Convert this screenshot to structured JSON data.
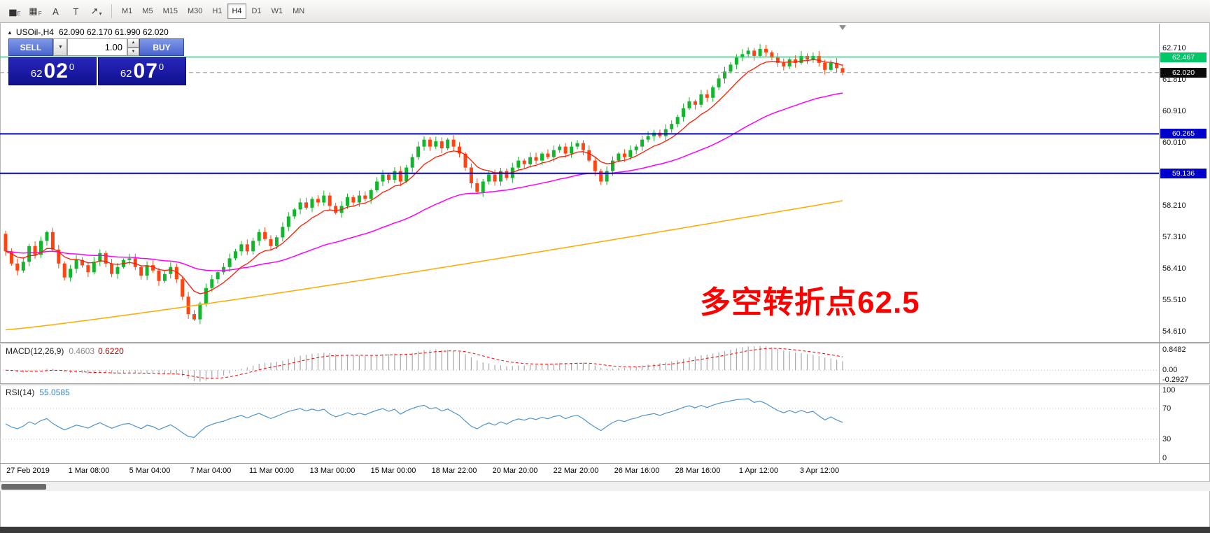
{
  "window": {
    "header": {
      "collapse_glyph": "▲",
      "symbol": "USOil-,H4",
      "ohlc": "62.090 62.170 61.990 62.020"
    }
  },
  "toolbar": {
    "icons": [
      {
        "name": "chart-expert-icon",
        "glyph": "▅",
        "sub": "E"
      },
      {
        "name": "grid-template-icon",
        "glyph": "▦",
        "sub": "F"
      },
      {
        "name": "font-a-icon",
        "glyph": "A",
        "sub": ""
      },
      {
        "name": "text-label-icon",
        "glyph": "T",
        "sub": ""
      },
      {
        "name": "draw-tools-dropdown-icon",
        "glyph": "↗",
        "sub": "▾"
      }
    ],
    "timeframes": [
      "M1",
      "M5",
      "M15",
      "M30",
      "H1",
      "H4",
      "D1",
      "W1",
      "MN"
    ],
    "active": "H4"
  },
  "trade_panel": {
    "sell_label": "SELL",
    "buy_label": "BUY",
    "volume": "1.00",
    "caret_glyph": "▼",
    "spin_up_glyph": "▲",
    "spin_down_glyph": "▼",
    "sell_price": {
      "prefix": "62",
      "big": "02",
      "sup": "0"
    },
    "buy_price": {
      "prefix": "62",
      "big": "07",
      "sup": "0"
    }
  },
  "annotation": {
    "text": "多空转折点62.5",
    "color": "#ff0000"
  },
  "chart_data": {
    "type": "candlestick",
    "symbol": "USOil-",
    "timeframe": "H4",
    "title": "USOil-,H4",
    "last_ohlc": {
      "open": 62.09,
      "high": 62.17,
      "low": 61.99,
      "close": 62.02
    },
    "y_range": [
      54.3,
      63.42
    ],
    "price_axis_labels": [
      "62.710",
      "61.810",
      "60.910",
      "60.010",
      "58.210",
      "57.310",
      "56.410",
      "55.510",
      "54.610"
    ],
    "time_labels": [
      "27 Feb 2019",
      "1 Mar 08:00",
      "5 Mar 04:00",
      "7 Mar 04:00",
      "11 Mar 00:00",
      "13 Mar 00:00",
      "15 Mar 00:00",
      "18 Mar 22:00",
      "20 Mar 20:00",
      "22 Mar 20:00",
      "26 Mar 16:00",
      "28 Mar 16:00",
      "1 Apr 12:00",
      "3 Apr 12:00"
    ],
    "first_open": 57.4,
    "closes": [
      56.9,
      56.55,
      56.35,
      56.6,
      57.05,
      56.8,
      57.2,
      57.45,
      56.95,
      56.55,
      56.15,
      56.4,
      56.65,
      56.5,
      56.3,
      56.6,
      56.85,
      56.55,
      56.25,
      56.45,
      56.65,
      56.7,
      56.45,
      56.2,
      56.5,
      56.35,
      56.05,
      56.25,
      56.45,
      56.1,
      55.6,
      55.1,
      54.95,
      55.4,
      55.85,
      56.1,
      56.3,
      56.45,
      56.7,
      56.9,
      57.1,
      56.9,
      57.2,
      57.45,
      57.25,
      57.05,
      57.3,
      57.6,
      57.9,
      58.1,
      58.3,
      58.15,
      58.4,
      58.3,
      58.5,
      58.2,
      58.0,
      58.2,
      58.45,
      58.3,
      58.5,
      58.4,
      58.65,
      58.9,
      59.1,
      58.95,
      59.2,
      58.9,
      59.3,
      59.6,
      59.9,
      60.1,
      59.9,
      60.05,
      59.85,
      60.1,
      59.9,
      59.7,
      59.3,
      58.85,
      58.6,
      58.9,
      59.1,
      58.9,
      59.2,
      59.0,
      59.3,
      59.5,
      59.4,
      59.6,
      59.5,
      59.7,
      59.6,
      59.8,
      59.9,
      59.7,
      59.9,
      60.0,
      59.8,
      59.5,
      59.2,
      58.9,
      59.2,
      59.5,
      59.7,
      59.6,
      59.8,
      59.9,
      60.1,
      60.2,
      60.3,
      60.2,
      60.4,
      60.55,
      60.75,
      61.0,
      61.2,
      61.1,
      61.4,
      61.3,
      61.6,
      61.85,
      62.05,
      62.25,
      62.45,
      62.55,
      62.65,
      62.5,
      62.7,
      62.6,
      62.45,
      62.3,
      62.2,
      62.4,
      62.3,
      62.5,
      62.4,
      62.5,
      62.3,
      62.1,
      62.3,
      62.15,
      62.02
    ],
    "candle_colors": {
      "up": "#12b52c",
      "down": "#ff4411"
    },
    "moving_averages": {
      "fast_period": 9,
      "fast_color": "#ff1a00",
      "mid_period": 45,
      "mid_color": "#ff00ff",
      "slow_color": "#ffaa00",
      "slow_start": 54.65,
      "slow_end": 58.35
    },
    "levels": [
      {
        "text": "62.467",
        "price": 62.467,
        "bg": "#00c868",
        "line": "#00e07a",
        "line_width": 1.5,
        "dashed": false,
        "role": "resistance-line"
      },
      {
        "text": "62.020",
        "price": 62.02,
        "bg": "#0a0a0a",
        "line": "#9a9a9a",
        "line_width": 1,
        "dashed": true,
        "role": "current-price"
      },
      {
        "text": "60.265",
        "price": 60.265,
        "bg": "#0000cd",
        "line": "#0000cd",
        "line_width": 2,
        "dashed": false,
        "role": "support-line-upper"
      },
      {
        "text": "59.136",
        "price": 59.136,
        "bg": "#0000cd",
        "line": "#0000cd",
        "line_width": 2,
        "dashed": false,
        "role": "support-line-lower"
      }
    ],
    "indicators": {
      "macd": {
        "name": "MACD(12,26,9)",
        "value1": "0.4603",
        "value2": "0.6220",
        "fast": 12,
        "slow": 26,
        "signal": 9,
        "axis_top": "0.8482",
        "axis_zero": "0.00",
        "axis_bottom": "-0.2927"
      },
      "rsi": {
        "name": "RSI(14)",
        "value": "55.0585",
        "period": 14,
        "axis_values": [
          100,
          70,
          30,
          0
        ],
        "levels": [
          70,
          30
        ]
      }
    }
  }
}
